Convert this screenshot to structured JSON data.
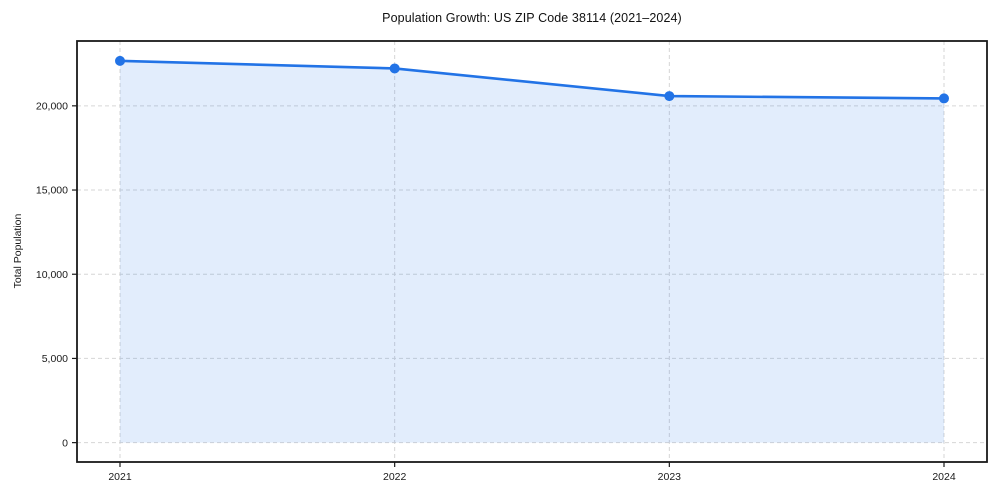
{
  "chart_data": {
    "type": "line",
    "title": "Population Growth: US ZIP Code 38114 (2021–2024)",
    "xlabel": "",
    "ylabel": "Total Population",
    "categories": [
      "2021",
      "2022",
      "2023",
      "2024"
    ],
    "series": [
      {
        "name": "Total Population",
        "values": [
          22670,
          22220,
          20580,
          20440
        ]
      }
    ],
    "ylim": [
      -1150,
      23850
    ],
    "yticks": [
      0,
      5000,
      10000,
      15000,
      20000
    ],
    "ytick_labels": [
      "0",
      "5,000",
      "10,000",
      "15,000",
      "20,000"
    ],
    "grid": "dashed",
    "legend": "none",
    "area_fill": true,
    "fill_baseline": 0,
    "marker": "circle",
    "colors": {
      "line": "#2273e6",
      "marker": "#2273e6",
      "area_fill": "rgba(34,115,230,0.13)",
      "grid": "#d6d6d6",
      "spine": "#1a1a1a",
      "tick_label": "#1a1a1a",
      "title": "#111111"
    }
  }
}
